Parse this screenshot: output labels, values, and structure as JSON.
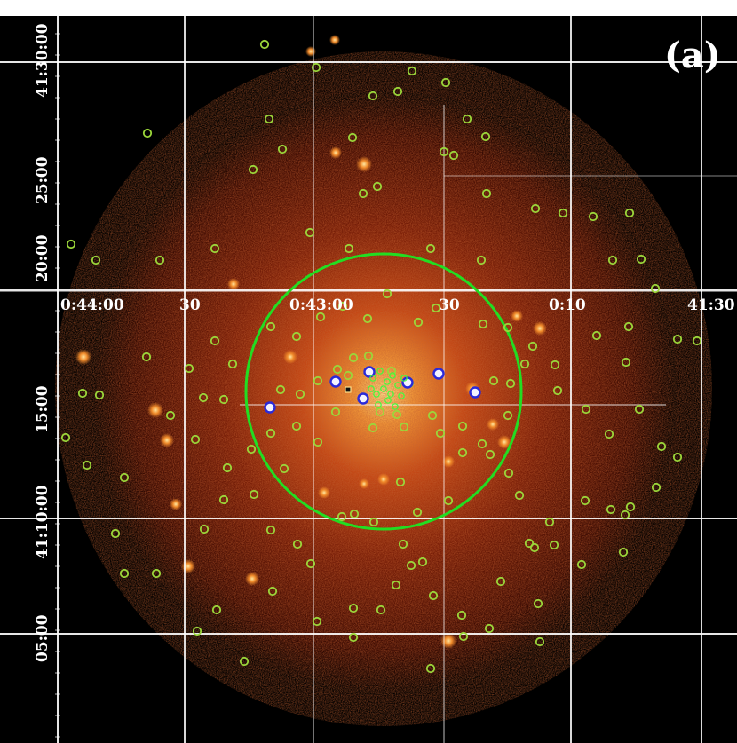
{
  "panel_label": "(a)",
  "ra_labels": [
    "0:44:00",
    "30",
    "0:43:00",
    "30",
    "0:10",
    "41:30"
  ],
  "dec_labels": [
    "41:30:00",
    "25:00",
    "20:00",
    "15:00",
    "41:10:00",
    "05:00"
  ],
  "colors": {
    "background": "#000000",
    "emission_core": "#ffd36a",
    "emission_mid": "#d9581c",
    "emission_outer": "#5a1606",
    "source_marker": "#9bd63a",
    "highlight_marker": "#2a2ad8",
    "region_circle": "#22dd22",
    "grid": "#ffffff"
  },
  "icons": {
    "source_marker": "small-green-circle-icon",
    "highlight_marker": "small-blue-circle-icon",
    "region_circle": "large-green-circle-icon"
  }
}
